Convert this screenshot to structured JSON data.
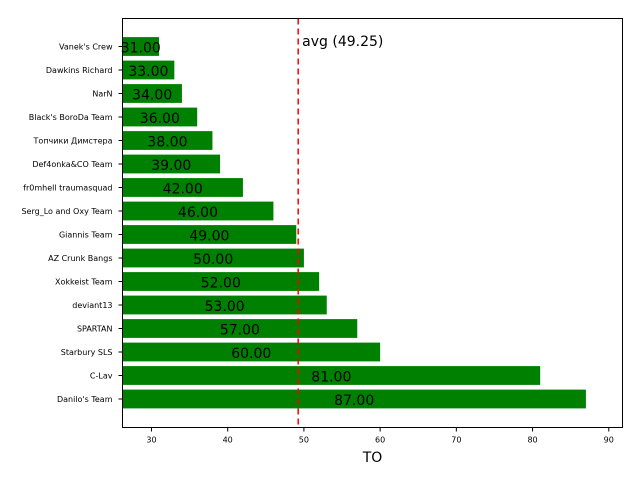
{
  "chart_data": {
    "type": "bar",
    "orientation": "horizontal",
    "categories": [
      "Vanek's Crew",
      "Dawkins Richard",
      "NarN",
      "Black's BoroDa Team",
      "Топчики Димстера",
      "Def4onka&CO Team",
      "fr0mhell traumasquad",
      "Serg_Lo and Oxy Team",
      "Giannis Team",
      "AZ Crunk Bangs",
      "Xokkeist Team",
      "deviant13",
      "SPARTAN",
      "Starbury SLS",
      "C-Lav",
      "Danilo's Team"
    ],
    "values": [
      31,
      33,
      34,
      36,
      38,
      39,
      42,
      46,
      49,
      50,
      52,
      53,
      57,
      60,
      81,
      87
    ],
    "value_labels": [
      "31.00",
      "33.00",
      "34.00",
      "36.00",
      "38.00",
      "39.00",
      "42.00",
      "46.00",
      "49.00",
      "50.00",
      "52.00",
      "53.00",
      "57.00",
      "60.00",
      "81.00",
      "87.00"
    ],
    "xlabel": "TO",
    "ylabel": "",
    "title": "",
    "xlim": [
      26.2,
      91.8
    ],
    "xticks": [
      30,
      40,
      50,
      60,
      70,
      80,
      90
    ],
    "avg": {
      "value": 49.25,
      "label": "avg (49.25)",
      "color": "#ff0000"
    },
    "bar_color": "#008000",
    "grid": false
  }
}
